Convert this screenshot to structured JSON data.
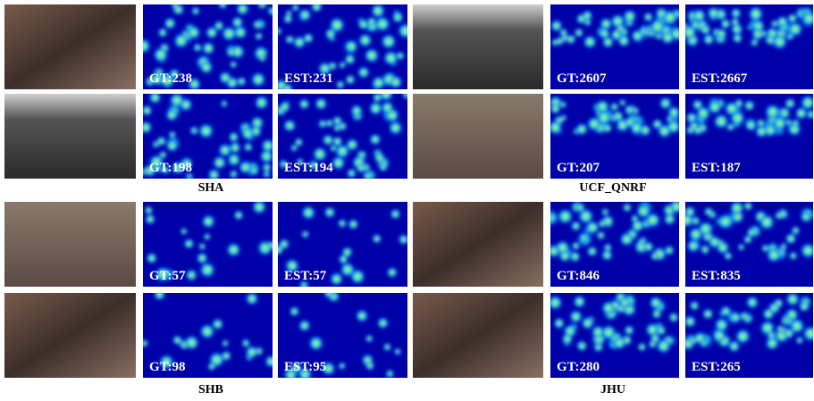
{
  "groups": [
    {
      "label": "SHA",
      "rows": [
        {
          "gt": "GT:238",
          "est": "EST:231"
        },
        {
          "gt": "GT:198",
          "est": "EST:194"
        }
      ]
    },
    {
      "label": "UCF_QNRF",
      "rows": [
        {
          "gt": "GT:2607",
          "est": "EST:2667"
        },
        {
          "gt": "GT:207",
          "est": "EST:187"
        }
      ]
    },
    {
      "label": "SHB",
      "rows": [
        {
          "gt": "GT:57",
          "est": "EST:57"
        },
        {
          "gt": "GT:98",
          "est": "EST:95"
        }
      ]
    },
    {
      "label": "JHU",
      "rows": [
        {
          "gt": "GT:846",
          "est": "EST:835"
        },
        {
          "gt": "GT:280",
          "est": "EST:265"
        }
      ]
    }
  ]
}
